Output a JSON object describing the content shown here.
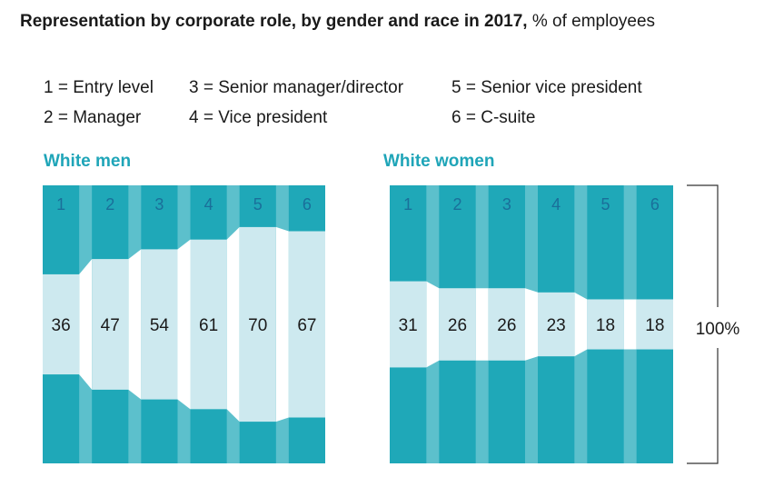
{
  "title": {
    "bold": "Representation by corporate role, by gender and race in 2017,",
    "regular": " % of employees"
  },
  "legend": [
    {
      "key": "1",
      "label": "1 = Entry level"
    },
    {
      "key": "2",
      "label": "2 = Manager"
    },
    {
      "key": "3",
      "label": "3 = Senior manager/director"
    },
    {
      "key": "4",
      "label": "4 = Vice president"
    },
    {
      "key": "5",
      "label": "5 = Senior vice president"
    },
    {
      "key": "6",
      "label": "6 = C-suite"
    }
  ],
  "bracket_label": "100%",
  "colors": {
    "dark": "#1fa8b8",
    "connector": "#5cc0cc",
    "highlight": "#cde9ef",
    "header_text": "#1a6f9a",
    "title_accent": "#1fa5b8"
  },
  "chart_data": [
    {
      "type": "bar",
      "title": "White men",
      "categories": [
        "1",
        "2",
        "3",
        "4",
        "5",
        "6"
      ],
      "values": [
        36,
        47,
        54,
        61,
        70,
        67
      ],
      "value_labels": [
        "36",
        "47",
        "54",
        "61",
        "70",
        "67"
      ],
      "ylim": [
        0,
        100
      ]
    },
    {
      "type": "bar",
      "title": "White women",
      "categories": [
        "1",
        "2",
        "3",
        "4",
        "5",
        "6"
      ],
      "values": [
        31,
        26,
        26,
        23,
        18,
        18
      ],
      "value_labels": [
        "31",
        "26",
        "26",
        "23",
        "18",
        "18"
      ],
      "ylim": [
        0,
        100
      ]
    }
  ]
}
